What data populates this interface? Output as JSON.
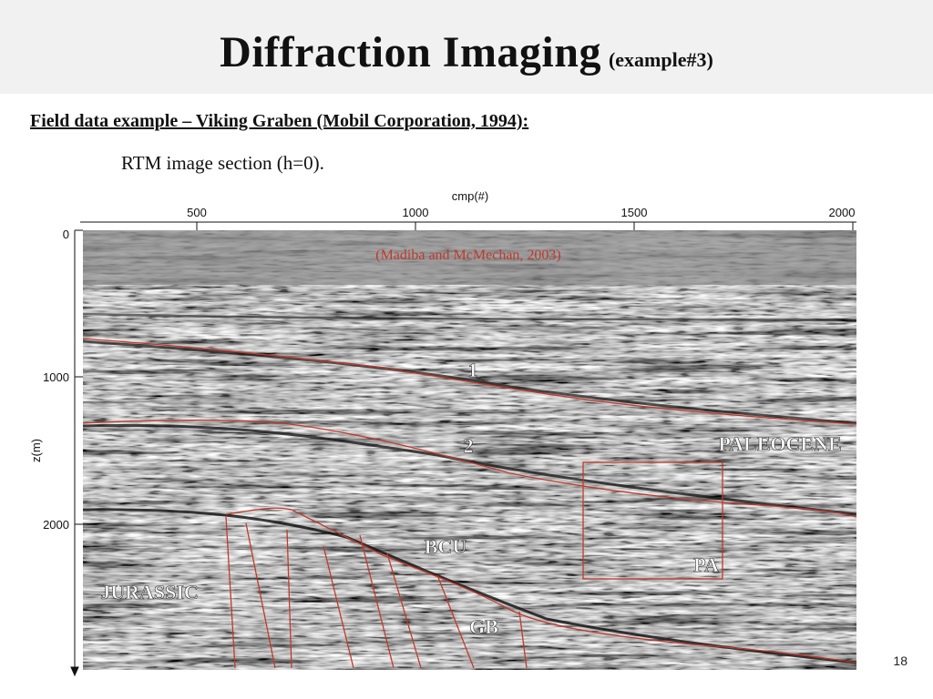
{
  "slide": {
    "title": "Diffraction Imaging",
    "title_suffix": "(example#3)",
    "heading": "Field data example – Viking Graben (Mobil Corporation, 1994):",
    "caption": "RTM image section (h=0).",
    "page_number": "18"
  },
  "figure": {
    "x_axis_label": "cmp(#)",
    "x_ticks": [
      "500",
      "1000",
      "1500",
      "2000"
    ],
    "y_axis_label": "z(m)",
    "y_ticks": [
      "0",
      "1000",
      "2000"
    ],
    "credit": "(Madiba and McMechan, 2003)",
    "annotations": {
      "horizon_1": "1",
      "horizon_2": "2",
      "paleocene": "PALEOCENE",
      "bcu": "BCU",
      "pa": "PA",
      "jurassic": "JURASSIC",
      "gb": "GB"
    },
    "colors": {
      "horizon_lines": "#c0392b",
      "annotation_text": "#ffffff",
      "credit_text": "#c0392b"
    }
  }
}
